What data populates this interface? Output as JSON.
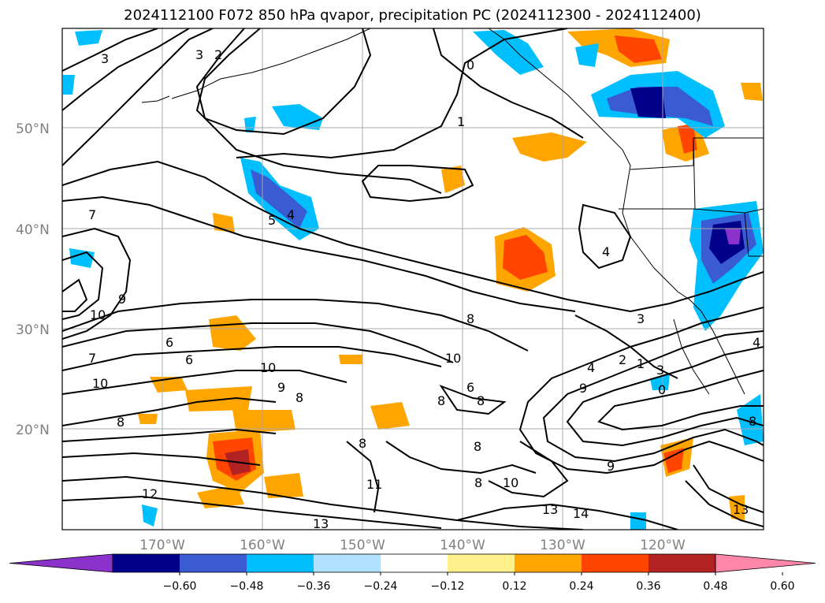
{
  "title": "2024112100 F072 850 hPa qvapor, precipitation PC (2024112300 - 2024112400)",
  "map": {
    "lon_ticks": [
      "170°W",
      "160°W",
      "150°W",
      "140°W",
      "130°W",
      "120°W"
    ],
    "lat_ticks": [
      "50°N",
      "40°N",
      "30°N",
      "20°N"
    ],
    "contour_labels": [
      "3",
      "2",
      "0",
      "1",
      "5",
      "4",
      "7",
      "9",
      "10",
      "8",
      "6",
      "10",
      "7",
      "6",
      "8",
      "3",
      "4",
      "2",
      "1",
      "3",
      "9",
      "12",
      "11",
      "8",
      "10",
      "13",
      "14",
      "13",
      "6",
      "0",
      "6",
      "5",
      "8",
      "6",
      "9",
      "10",
      "9",
      "4"
    ]
  },
  "colorbar": {
    "ticks": [
      "−0.60",
      "−0.48",
      "−0.36",
      "−0.24",
      "−0.12",
      "0.12",
      "0.24",
      "0.36",
      "0.48",
      "0.60"
    ],
    "colors": [
      "#8b32cd",
      "#00008b",
      "#3a5bd1",
      "#00bfff",
      "#b0e2ff",
      "#ffffff",
      "#fff08c",
      "#ffa500",
      "#ff4500",
      "#b22222",
      "#ff88aa"
    ]
  }
}
